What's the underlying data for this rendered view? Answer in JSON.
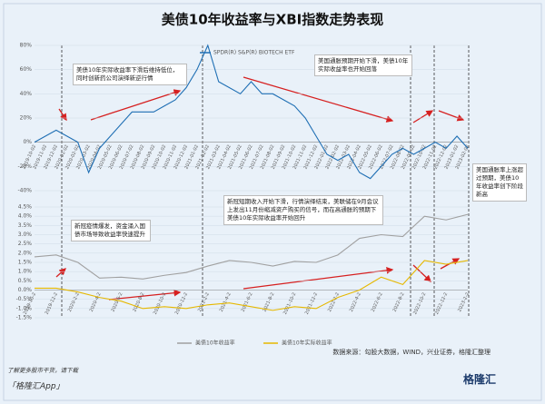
{
  "title": "美债10年收益率与XBI指数走势表现",
  "annotations": [
    "美债10年实际收益率下滑后维持低位，同时创新药公司演绎新逆行情",
    "美国通胀预期开始下滑，美债10年实际收益率也开始回落",
    "美国通胀率上涨超过预期，美债10年收益率创下阶段新高",
    "新冠疫情爆发，资金涌入国债市场导致收益率快速提升",
    "新冠短期收入开始下滑，行情演绎结束，美联储在9月会议上发出11月份缩减资产购买的信号，而在高通胀的预期下美债10年实际收益率开始回升"
  ],
  "source": "数据来源：勾股大数据，WIND，兴业证券，格隆汇整理",
  "footer": {
    "line1": "了解更多股市干货，请下载",
    "line2": "「格隆汇App」",
    "logo": "格隆汇"
  },
  "chart_data": [
    {
      "type": "line",
      "categories": [
        "2019-10-02",
        "2019-11-02",
        "2019-12-02",
        "2020-01-02",
        "2020-02-02",
        "2020-03-02",
        "2020-04-02",
        "2020-05-02",
        "2020-06-02",
        "2020-07-02",
        "2020-08-02",
        "2020-09-02",
        "2020-10-02",
        "2020-11-02",
        "2020-12-02",
        "2021-01-02",
        "2021-02-02",
        "2021-03-02",
        "2021-04-02",
        "2021-05-02",
        "2021-06-02",
        "2021-07-02",
        "2021-08-02",
        "2021-09-02",
        "2021-10-02",
        "2021-11-02",
        "2021-12-02",
        "2022-01-02",
        "2022-02-02",
        "2022-03-02",
        "2022-04-02",
        "2022-05-02",
        "2022-06-02",
        "2022-07-02",
        "2022-08-02",
        "2022-09-02",
        "2022-10-02",
        "2022-11-02",
        "2022-12-02",
        "2023-01-02",
        "2023-02-02"
      ],
      "series": [
        {
          "name": "SPDR(R) S&P(R) BIOTECH ETF",
          "color": "#1f6fb4",
          "values": [
            0,
            5,
            10,
            5,
            0,
            -25,
            -5,
            5,
            15,
            25,
            25,
            25,
            30,
            35,
            45,
            60,
            80,
            50,
            45,
            40,
            50,
            40,
            40,
            35,
            30,
            20,
            5,
            -10,
            -15,
            -10,
            -25,
            -30,
            -20,
            -10,
            -5,
            -10,
            -5,
            0,
            -5,
            5,
            -5
          ]
        }
      ],
      "ylim": [
        -40,
        80
      ],
      "yticks": [
        {
          "value": -40,
          "label": "-40%"
        },
        {
          "value": -20,
          "label": "-20%"
        },
        {
          "value": 0,
          "label": "0%"
        },
        {
          "value": 20,
          "label": "20%"
        },
        {
          "value": 40,
          "label": "40%"
        },
        {
          "value": 60,
          "label": "60%"
        },
        {
          "value": 80,
          "label": "80%"
        }
      ]
    },
    {
      "type": "line",
      "categories": [
        "2019-10-2",
        "2019-12-2",
        "2020-2-2",
        "2020-4-2",
        "2020-6-2",
        "2020-8-2",
        "2020-10-2",
        "2020-12-2",
        "2021-2-2",
        "2021-4-2",
        "2021-6-2",
        "2021-8-2",
        "2021-10-2",
        "2021-12-2",
        "2022-2-2",
        "2022-4-2",
        "2022-6-2",
        "2022-8-2",
        "2022-10-2",
        "2022-12-2",
        "2023-2-2"
      ],
      "series": [
        {
          "name": "美债10年收益率",
          "color": "#a0a0a0",
          "values": [
            1.8,
            1.9,
            1.5,
            0.65,
            0.7,
            0.6,
            0.8,
            0.95,
            1.3,
            1.6,
            1.5,
            1.3,
            1.55,
            1.5,
            1.9,
            2.8,
            3.0,
            2.9,
            4.0,
            3.8,
            4.1
          ]
        },
        {
          "name": "美债10年实际收益率",
          "color": "#e6b800",
          "values": [
            0.1,
            0.1,
            -0.1,
            -0.4,
            -0.6,
            -1.0,
            -0.9,
            -1.0,
            -0.8,
            -0.7,
            -0.9,
            -1.1,
            -0.9,
            -1.0,
            -0.4,
            0.0,
            0.7,
            0.3,
            1.6,
            1.4,
            1.6
          ]
        }
      ],
      "ylim": [
        -1.5,
        4.5
      ],
      "yticks": [
        {
          "value": -1.5,
          "label": "-1.5%"
        },
        {
          "value": -1,
          "label": "-1.0%"
        },
        {
          "value": -0.5,
          "label": "-0.5%"
        },
        {
          "value": 0,
          "label": "0.0%"
        },
        {
          "value": 0.5,
          "label": "0.5%"
        },
        {
          "value": 1,
          "label": "1.0%"
        },
        {
          "value": 1.5,
          "label": "1.5%"
        },
        {
          "value": 2,
          "label": "2.0%"
        },
        {
          "value": 2.5,
          "label": "2.5%"
        },
        {
          "value": 3,
          "label": "3.0%"
        },
        {
          "value": 3.5,
          "label": "3.5%"
        },
        {
          "value": 4,
          "label": "4.0%"
        },
        {
          "value": 4.5,
          "label": "4.5%"
        }
      ]
    }
  ]
}
